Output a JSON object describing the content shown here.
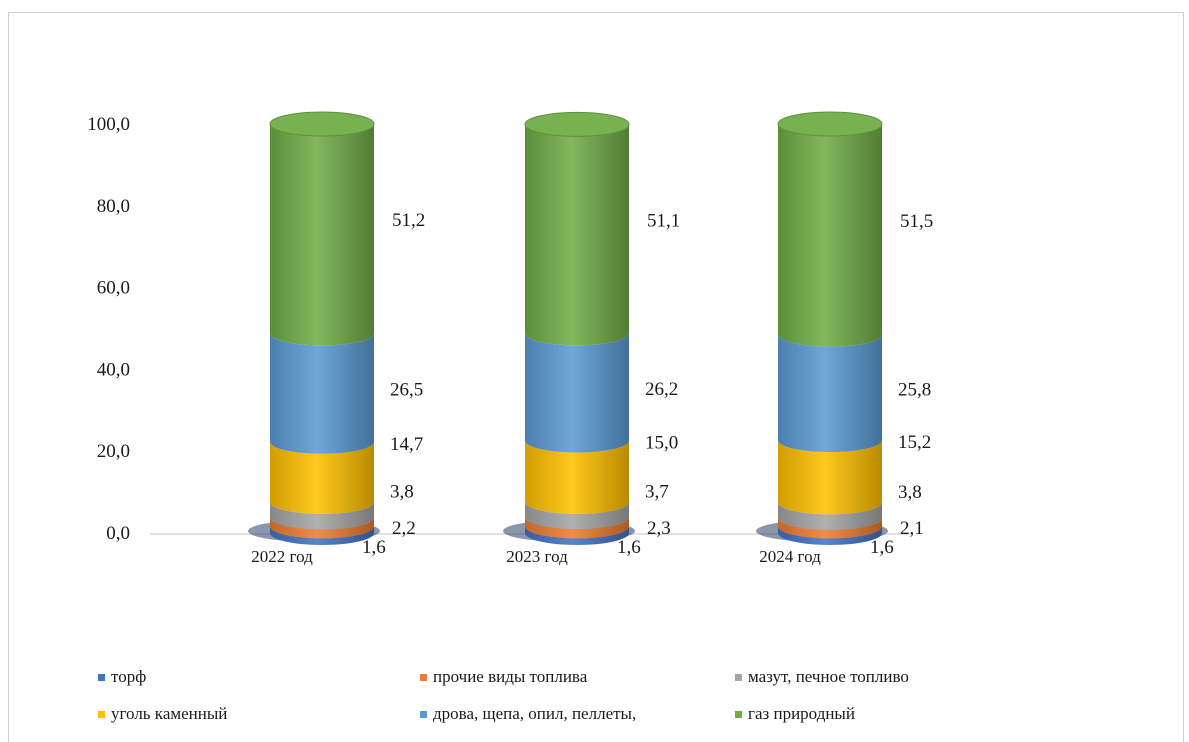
{
  "chart_data": {
    "type": "bar",
    "categories": [
      "2022 год",
      "2023 год",
      "2024 год"
    ],
    "yticks": [
      "0,0",
      "20,0",
      "40,0",
      "60,0",
      "80,0",
      "100,0"
    ],
    "ylim": [
      0,
      100
    ],
    "series": [
      {
        "name": "торф",
        "color": "#4472c4",
        "values": [
          1.6,
          1.6,
          1.6
        ],
        "labels": [
          "1,6",
          "1,6",
          "1,6"
        ]
      },
      {
        "name": "прочие виды топлива",
        "color": "#ed7d31",
        "values": [
          2.2,
          2.3,
          2.1
        ],
        "labels": [
          "2,2",
          "2,3",
          "2,1"
        ]
      },
      {
        "name": "мазут, печное топливо",
        "color": "#a5a5a5",
        "values": [
          3.8,
          3.7,
          3.8
        ],
        "labels": [
          "3,8",
          "3,7",
          "3,8"
        ]
      },
      {
        "name": "уголь каменный",
        "color": "#ffc000",
        "values": [
          14.7,
          15.0,
          15.2
        ],
        "labels": [
          "14,7",
          "15,0",
          "15,2"
        ]
      },
      {
        "name": "дрова, щепа, опил, пеллеты,",
        "color": "#5b9bd5",
        "values": [
          26.5,
          26.2,
          25.8
        ],
        "labels": [
          "26,5",
          "26,2",
          "25,8"
        ]
      },
      {
        "name": "газ природный",
        "color": "#70ad47",
        "values": [
          51.2,
          51.1,
          51.5
        ],
        "labels": [
          "51,2",
          "51,1",
          "51,5"
        ]
      }
    ],
    "legend_position": "bottom",
    "grid": false,
    "style": "3d-cylinder-stacked"
  }
}
